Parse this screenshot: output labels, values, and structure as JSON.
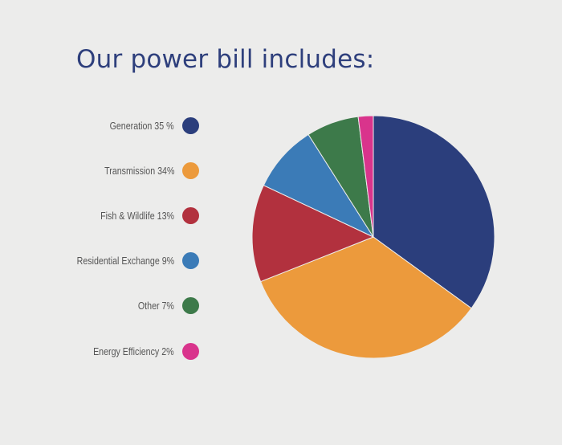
{
  "title": "Our power bill includes:",
  "chart_data": {
    "type": "pie",
    "title": "Our power bill includes:",
    "legend_position": "left",
    "start_angle": "12 o'clock",
    "direction": "clockwise",
    "slices": [
      {
        "label": "Generation 35 %",
        "name": "Generation",
        "value": 35,
        "color": "#2b3e7c"
      },
      {
        "label": "Transmission 34%",
        "name": "Transmission",
        "value": 34,
        "color": "#ec9a3c"
      },
      {
        "label": "Fish & Wildlife 13%",
        "name": "Fish & Wildlife",
        "value": 13,
        "color": "#b2313e"
      },
      {
        "label": "Residential Exchange 9%",
        "name": "Residential Exchange",
        "value": 9,
        "color": "#3b7bb7"
      },
      {
        "label": "Other 7%",
        "name": "Other",
        "value": 7,
        "color": "#3d7a4a"
      },
      {
        "label": "Energy Efficiency 2%",
        "name": "Energy Efficiency",
        "value": 2,
        "color": "#d9348c"
      }
    ]
  }
}
